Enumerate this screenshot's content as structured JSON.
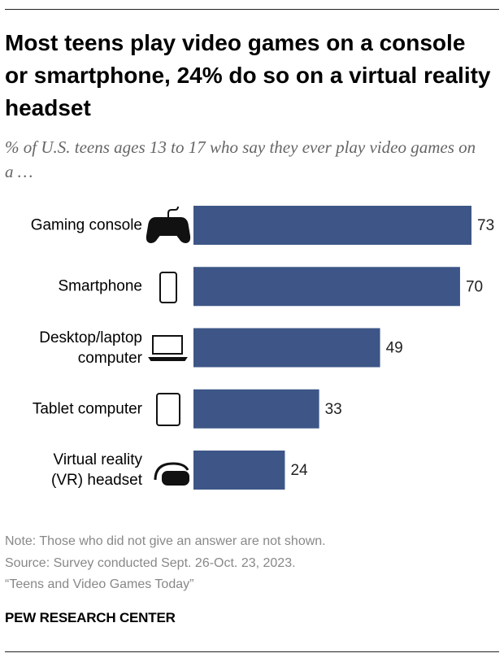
{
  "chart_data": {
    "type": "bar",
    "title": "Most teens play video games on a console or smartphone, 24% do so on a virtual reality headset",
    "subtitle": "% of U.S. teens ages 13 to 17 who say they ever play video games on a …",
    "categories": [
      "Gaming console",
      "Smartphone",
      "Desktop/laptop\ncomputer",
      "Tablet computer",
      "Virtual reality\n(VR) headset"
    ],
    "values": [
      73,
      70,
      49,
      33,
      24
    ],
    "color": "#3d5687",
    "notes": [
      "Note: Those who did not give an answer are not shown.",
      "Source: Survey conducted Sept. 26-Oct. 23, 2023.",
      "“Teens and Video Games Today”"
    ],
    "source": "PEW RESEARCH CENTER"
  }
}
